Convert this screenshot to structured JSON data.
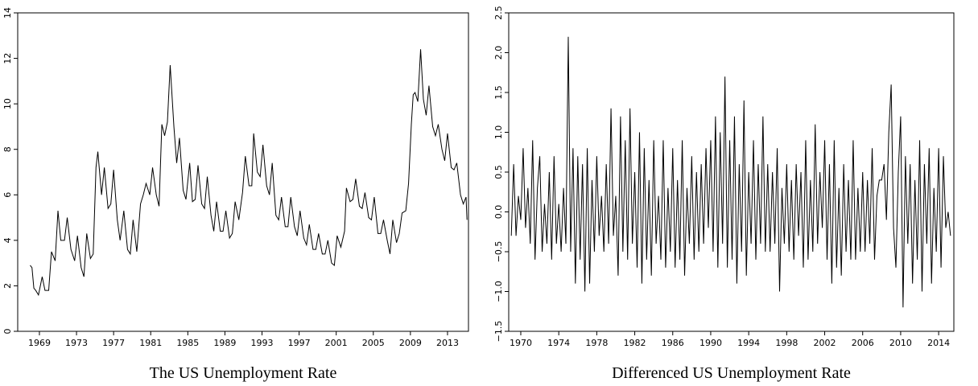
{
  "chart_data": [
    {
      "type": "line",
      "title": "The US Unemployment Rate",
      "x": [
        1968.0,
        1968.2,
        1968.4,
        1968.6,
        1968.9,
        1969.3,
        1969.6,
        1970.0,
        1970.3,
        1970.7,
        1971.0,
        1971.3,
        1971.7,
        1972.0,
        1972.4,
        1972.8,
        1973.1,
        1973.5,
        1973.8,
        1974.1,
        1974.5,
        1974.8,
        1975.1,
        1975.3,
        1975.7,
        1976.0,
        1976.4,
        1976.7,
        1977.0,
        1977.4,
        1977.7,
        1978.1,
        1978.5,
        1978.8,
        1979.1,
        1979.5,
        1979.9,
        1980.2,
        1980.5,
        1980.9,
        1981.2,
        1981.6,
        1981.9,
        1982.2,
        1982.5,
        1982.8,
        1983.1,
        1983.5,
        1983.8,
        1984.1,
        1984.5,
        1984.8,
        1985.2,
        1985.5,
        1985.8,
        1986.1,
        1986.5,
        1986.8,
        1987.1,
        1987.5,
        1987.8,
        1988.1,
        1988.5,
        1988.8,
        1989.1,
        1989.5,
        1989.8,
        1990.1,
        1990.5,
        1990.9,
        1991.2,
        1991.6,
        1991.9,
        1992.1,
        1992.5,
        1992.8,
        1993.1,
        1993.5,
        1993.8,
        1994.1,
        1994.5,
        1994.8,
        1995.1,
        1995.5,
        1995.8,
        1996.1,
        1996.5,
        1996.8,
        1997.1,
        1997.5,
        1997.8,
        1998.1,
        1998.5,
        1998.8,
        1999.1,
        1999.5,
        1999.8,
        2000.1,
        2000.5,
        2000.8,
        2001.1,
        2001.5,
        2001.9,
        2002.1,
        2002.5,
        2002.8,
        2003.1,
        2003.5,
        2003.8,
        2004.1,
        2004.5,
        2004.8,
        2005.1,
        2005.5,
        2005.8,
        2006.1,
        2006.5,
        2006.8,
        2007.1,
        2007.5,
        2007.8,
        2008.1,
        2008.5,
        2008.8,
        2009.1,
        2009.3,
        2009.5,
        2009.8,
        2010.1,
        2010.4,
        2010.7,
        2011.0,
        2011.4,
        2011.7,
        2012.0,
        2012.4,
        2012.7,
        2013.0,
        2013.4,
        2013.7,
        2014.0,
        2014.4,
        2014.7,
        2015.0,
        2015.1
      ],
      "values": [
        2.9,
        2.8,
        1.9,
        1.8,
        1.6,
        2.4,
        1.8,
        1.8,
        3.5,
        3.1,
        5.3,
        4.0,
        4.0,
        5.0,
        3.6,
        3.1,
        4.2,
        2.8,
        2.4,
        4.3,
        3.2,
        3.4,
        7.2,
        7.9,
        6.0,
        7.2,
        5.4,
        5.6,
        7.1,
        4.9,
        4.0,
        5.3,
        3.6,
        3.4,
        4.9,
        3.5,
        5.6,
        6.0,
        6.5,
        6.0,
        7.2,
        6.0,
        5.5,
        9.1,
        8.6,
        9.2,
        11.7,
        9.0,
        7.4,
        8.5,
        6.2,
        5.8,
        7.4,
        5.7,
        5.8,
        7.3,
        5.6,
        5.4,
        6.8,
        5.1,
        4.4,
        5.7,
        4.4,
        4.4,
        5.3,
        4.1,
        4.3,
        5.7,
        4.9,
        6.1,
        7.7,
        6.4,
        6.4,
        8.7,
        7.0,
        6.8,
        8.2,
        6.4,
        6.0,
        7.4,
        5.1,
        4.9,
        5.9,
        4.6,
        4.6,
        5.9,
        4.6,
        4.2,
        5.3,
        4.1,
        3.8,
        4.7,
        3.6,
        3.6,
        4.3,
        3.4,
        3.4,
        4.0,
        3.0,
        2.9,
        4.2,
        3.7,
        4.4,
        6.3,
        5.7,
        5.8,
        6.7,
        5.5,
        5.4,
        6.1,
        5.0,
        4.9,
        5.9,
        4.3,
        4.3,
        4.9,
        4.0,
        3.4,
        4.9,
        3.9,
        4.3,
        5.2,
        5.3,
        6.5,
        9.1,
        10.4,
        10.5,
        10.1,
        12.4,
        10.2,
        9.5,
        10.8,
        9.0,
        8.6,
        9.1,
        8.0,
        7.5,
        8.7,
        7.2,
        7.1,
        7.4,
        6.0,
        5.6,
        5.9,
        4.9
      ],
      "color": "#000000",
      "xlim": [
        1966.66,
        2015.26
      ],
      "xticks": [
        1969,
        1973,
        1977,
        1981,
        1985,
        1989,
        1993,
        1997,
        2001,
        2005,
        2009,
        2013
      ],
      "ylim": [
        0,
        14
      ],
      "yticks": [
        0,
        2,
        4,
        6,
        8,
        10,
        12,
        14
      ]
    },
    {
      "type": "line",
      "title": "Differenced US Unemployment Rate",
      "x": [
        1969.0,
        1969.25,
        1969.5,
        1969.75,
        1970.0,
        1970.25,
        1970.5,
        1970.75,
        1971.0,
        1971.25,
        1971.5,
        1971.75,
        1972.0,
        1972.25,
        1972.5,
        1972.75,
        1973.0,
        1973.25,
        1973.5,
        1973.75,
        1974.0,
        1974.25,
        1974.5,
        1974.75,
        1975.0,
        1975.25,
        1975.5,
        1975.75,
        1976.0,
        1976.25,
        1976.5,
        1976.75,
        1977.0,
        1977.25,
        1977.5,
        1977.75,
        1978.0,
        1978.25,
        1978.5,
        1978.75,
        1979.0,
        1979.25,
        1979.5,
        1979.75,
        1980.0,
        1980.25,
        1980.5,
        1980.75,
        1981.0,
        1981.25,
        1981.5,
        1981.75,
        1982.0,
        1982.25,
        1982.5,
        1982.75,
        1983.0,
        1983.25,
        1983.5,
        1983.75,
        1984.0,
        1984.25,
        1984.5,
        1984.75,
        1985.0,
        1985.25,
        1985.5,
        1985.75,
        1986.0,
        1986.25,
        1986.5,
        1986.75,
        1987.0,
        1987.25,
        1987.5,
        1987.75,
        1988.0,
        1988.25,
        1988.5,
        1988.75,
        1989.0,
        1989.25,
        1989.5,
        1989.75,
        1990.0,
        1990.25,
        1990.5,
        1990.75,
        1991.0,
        1991.25,
        1991.5,
        1991.75,
        1992.0,
        1992.25,
        1992.5,
        1992.75,
        1993.0,
        1993.25,
        1993.5,
        1993.75,
        1994.0,
        1994.25,
        1994.5,
        1994.75,
        1995.0,
        1995.25,
        1995.5,
        1995.75,
        1996.0,
        1996.25,
        1996.5,
        1996.75,
        1997.0,
        1997.25,
        1997.5,
        1997.75,
        1998.0,
        1998.25,
        1998.5,
        1998.75,
        1999.0,
        1999.25,
        1999.5,
        1999.75,
        2000.0,
        2000.25,
        2000.5,
        2000.75,
        2001.0,
        2001.25,
        2001.5,
        2001.75,
        2002.0,
        2002.25,
        2002.5,
        2002.75,
        2003.0,
        2003.25,
        2003.5,
        2003.75,
        2004.0,
        2004.25,
        2004.5,
        2004.75,
        2005.0,
        2005.25,
        2005.5,
        2005.75,
        2006.0,
        2006.25,
        2006.5,
        2006.75,
        2007.0,
        2007.25,
        2007.5,
        2007.75,
        2008.0,
        2008.25,
        2008.5,
        2008.75,
        2009.0,
        2009.25,
        2009.5,
        2009.75,
        2010.0,
        2010.25,
        2010.5,
        2010.75,
        2011.0,
        2011.25,
        2011.5,
        2011.75,
        2012.0,
        2012.25,
        2012.5,
        2012.75,
        2013.0,
        2013.25,
        2013.5,
        2013.75,
        2014.0,
        2014.25,
        2014.5,
        2014.75,
        2015.0,
        2015.25
      ],
      "values": [
        -0.3,
        0.6,
        -0.3,
        0.2,
        -0.1,
        0.8,
        -0.2,
        0.3,
        -0.4,
        0.9,
        -0.6,
        0.3,
        0.7,
        -0.5,
        0.1,
        -0.4,
        0.5,
        -0.6,
        0.7,
        -0.4,
        0.1,
        -0.5,
        0.3,
        -0.4,
        2.2,
        -0.5,
        0.8,
        -0.9,
        0.7,
        -0.6,
        0.6,
        -1.0,
        0.8,
        -0.9,
        0.4,
        -0.5,
        0.7,
        -0.3,
        0.2,
        -0.5,
        0.6,
        -0.4,
        1.3,
        -0.3,
        0.2,
        -0.8,
        1.2,
        -0.5,
        0.9,
        -0.6,
        1.3,
        -0.4,
        0.5,
        -0.7,
        1.0,
        -0.9,
        0.8,
        -0.6,
        0.4,
        -0.8,
        0.9,
        -0.4,
        0.2,
        -0.6,
        0.9,
        -0.7,
        0.3,
        -0.5,
        0.8,
        -0.7,
        0.4,
        -0.6,
        0.9,
        -0.8,
        0.3,
        -0.4,
        0.7,
        -0.6,
        0.5,
        -0.5,
        0.6,
        -0.4,
        0.8,
        -0.2,
        0.9,
        -0.5,
        1.2,
        -0.7,
        1.0,
        -0.4,
        1.7,
        -0.7,
        0.9,
        -0.6,
        1.2,
        -0.9,
        0.6,
        -0.5,
        1.4,
        -0.8,
        0.5,
        -0.4,
        0.9,
        -0.6,
        0.6,
        -0.4,
        1.2,
        -0.5,
        0.6,
        -0.5,
        0.5,
        -0.4,
        0.8,
        -1.0,
        0.3,
        -0.4,
        0.6,
        -0.5,
        0.4,
        -0.6,
        0.6,
        -0.3,
        0.5,
        -0.7,
        0.9,
        -0.6,
        0.4,
        -0.5,
        1.1,
        -0.4,
        0.5,
        -0.2,
        0.9,
        -0.6,
        0.6,
        -0.9,
        0.9,
        -0.7,
        0.3,
        -0.8,
        0.6,
        -0.5,
        0.4,
        -0.6,
        0.9,
        -0.6,
        0.3,
        -0.5,
        0.5,
        -0.5,
        0.4,
        -0.4,
        0.8,
        -0.6,
        0.2,
        0.4,
        0.4,
        0.6,
        -0.1,
        1.0,
        1.6,
        -0.2,
        -0.7,
        0.5,
        1.2,
        -1.2,
        0.7,
        -0.4,
        0.6,
        -0.9,
        0.4,
        -0.6,
        0.9,
        -1.0,
        0.6,
        -0.4,
        0.8,
        -0.9,
        0.3,
        -0.5,
        0.8,
        -0.7,
        0.7,
        -0.2,
        0.0,
        -0.3
      ],
      "color": "#000000",
      "xlim": [
        1968.73,
        2015.6
      ],
      "xticks": [
        1970,
        1974,
        1978,
        1982,
        1986,
        1990,
        1994,
        1998,
        2002,
        2006,
        2010,
        2014
      ],
      "ylim": [
        -1.5,
        2.5
      ],
      "yticks": [
        {
          "value": -1.5,
          "label": "−1.5"
        },
        {
          "value": -1.0,
          "label": "−1.0"
        },
        {
          "value": -0.5,
          "label": "−0.5"
        },
        {
          "value": 0.0,
          "label": "0.0"
        },
        {
          "value": 0.5,
          "label": "0.5"
        },
        {
          "value": 1.0,
          "label": "1.0"
        },
        {
          "value": 1.5,
          "label": "1.5"
        },
        {
          "value": 2.0,
          "label": "2.0"
        },
        {
          "value": 2.5,
          "label": "2.5"
        }
      ]
    }
  ]
}
